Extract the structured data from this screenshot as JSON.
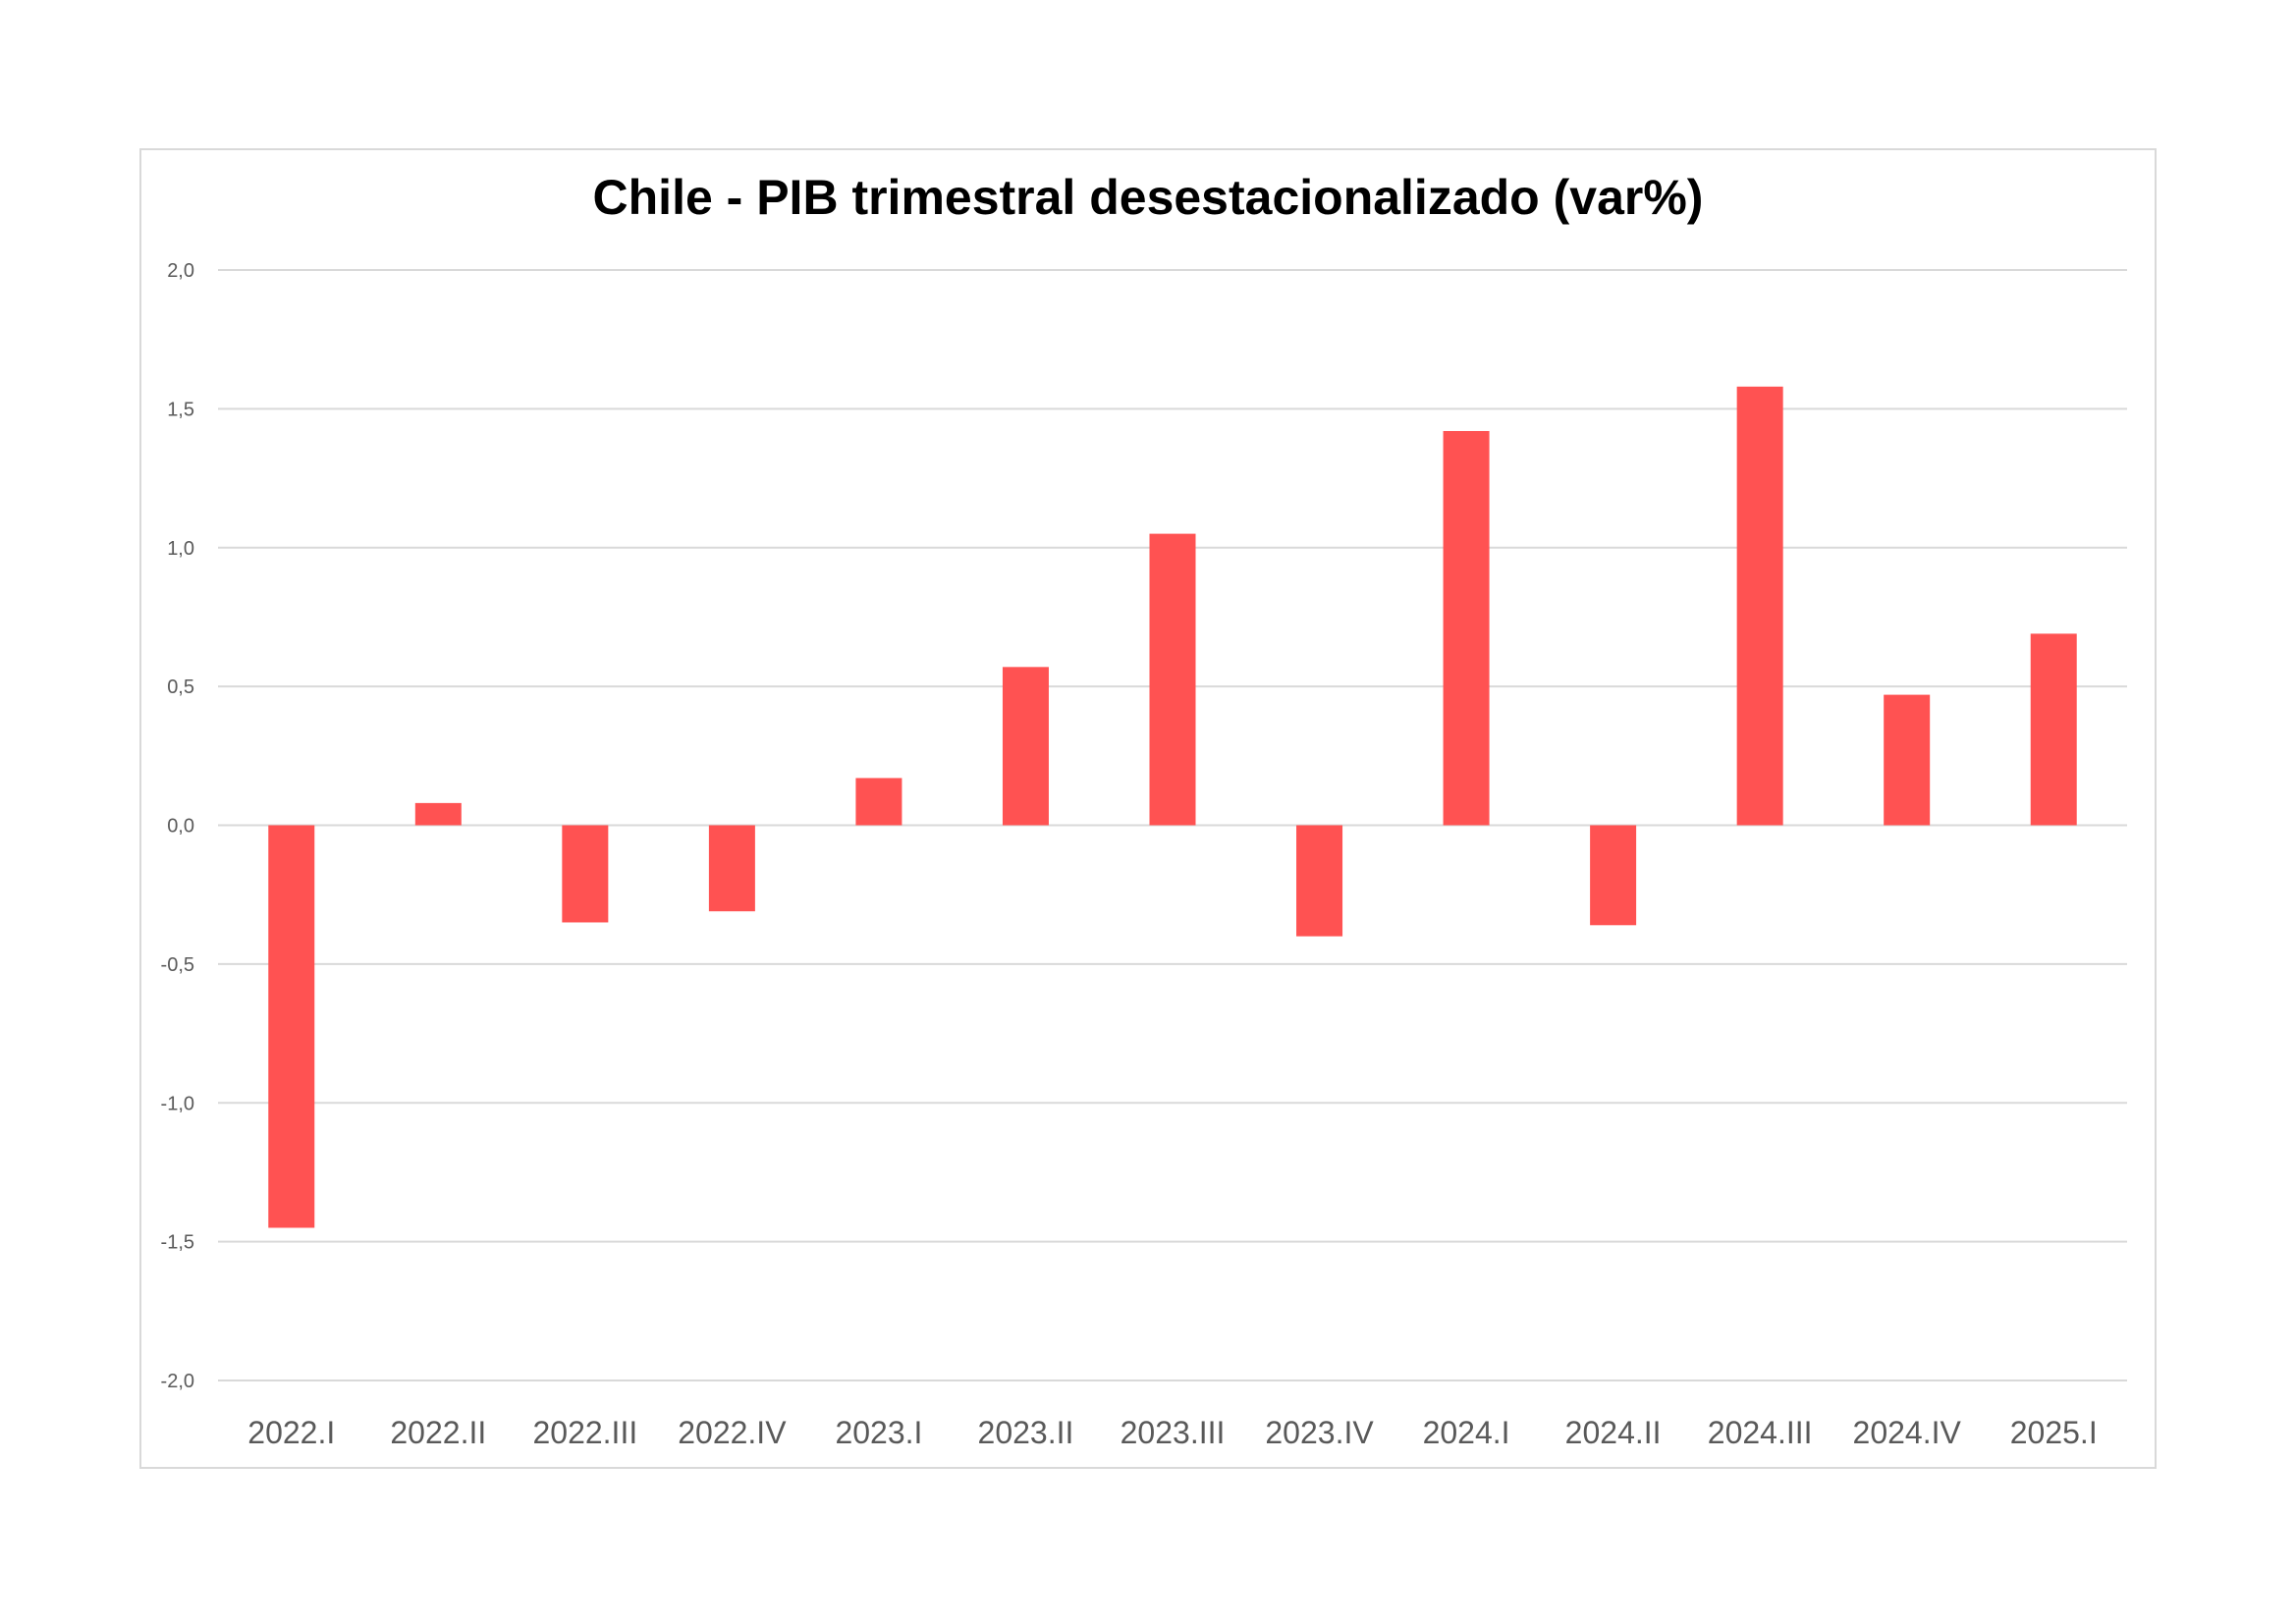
{
  "chart_data": {
    "type": "bar",
    "title": "Chile - PIB trimestral desestacionalizado (var%)",
    "xlabel": "",
    "ylabel": "",
    "categories": [
      "2022.I",
      "2022.II",
      "2022.III",
      "2022.IV",
      "2023.I",
      "2023.II",
      "2023.III",
      "2023.IV",
      "2024.I",
      "2024.II",
      "2024.III",
      "2024.IV",
      "2025.I"
    ],
    "values": [
      -1.45,
      0.08,
      -0.35,
      -0.31,
      0.17,
      0.57,
      1.05,
      -0.4,
      1.42,
      -0.36,
      1.58,
      0.47,
      0.69
    ],
    "ylim": [
      -2.0,
      2.0
    ],
    "yticks": [
      2.0,
      1.5,
      1.0,
      0.5,
      0.0,
      -0.5,
      -1.0,
      -1.5,
      -2.0
    ],
    "ytick_labels": [
      "2,0",
      "1,5",
      "1,0",
      "0,5",
      "0,0",
      "-0,5",
      "-1,0",
      "-1,5",
      "-2,0"
    ],
    "grid": true,
    "legend": "none",
    "colors": {
      "bar": "#ff5252",
      "grid": "#d9d9d9",
      "frame": "#d9d9d9",
      "tick_text": "#595959",
      "title_text": "#000000"
    }
  }
}
